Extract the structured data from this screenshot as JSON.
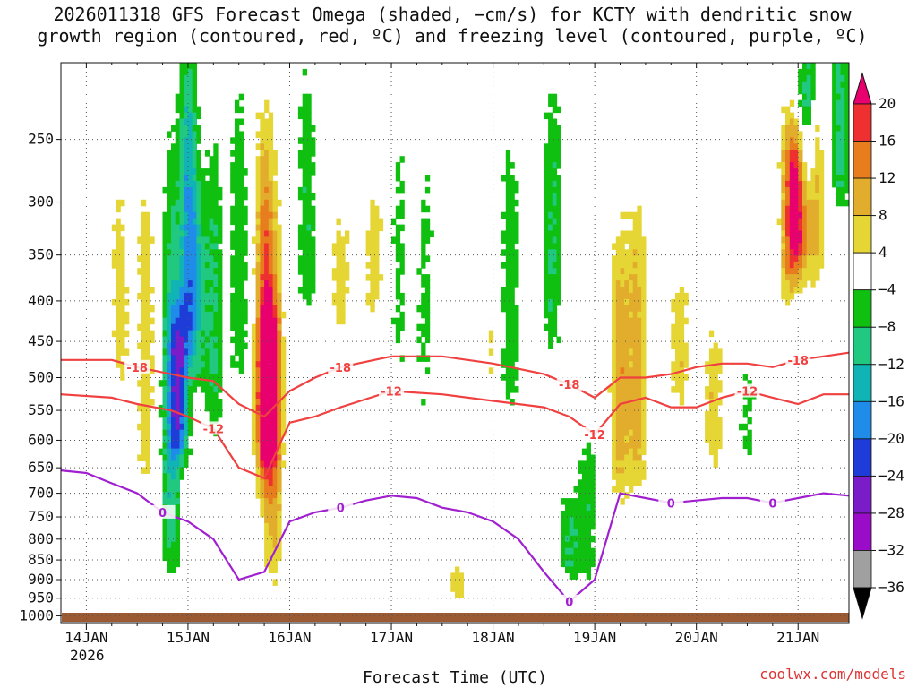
{
  "title_lines": [
    "2026011318 GFS Forecast Omega (shaded, −cm/s) for KCTY with dendritic snow",
    "growth region (contoured, red, ºC) and freezing level (contoured, purple, ºC)"
  ],
  "credit": "coolwx.com/models",
  "chart_data": {
    "type": "heatmap",
    "title": "2026011318 GFS Forecast Omega (shaded, −cm/s) for KCTY with dendritic snow growth region (contoured, red, ºC) and freezing level (contoured, purple, ºC)",
    "xlabel": "Forecast Time (UTC)",
    "ylabel": "",
    "x_ticks": [
      "14JAN",
      "15JAN",
      "16JAN",
      "17JAN",
      "18JAN",
      "19JAN",
      "20JAN",
      "21JAN"
    ],
    "x_year_label": "2026",
    "x_range_hours": [
      -6,
      180
    ],
    "y_ticks": [
      250,
      300,
      350,
      400,
      450,
      500,
      550,
      600,
      650,
      700,
      750,
      800,
      850,
      900,
      950,
      1000
    ],
    "ylim": [
      1020,
      200
    ],
    "y_scale": "log-pressure",
    "grid": true,
    "colorbar": {
      "labels": [
        "20",
        "16",
        "12",
        "8",
        "4",
        "−4",
        "−8",
        "−12",
        "−16",
        "−20",
        "−24",
        "−28",
        "−32",
        "−36"
      ],
      "colors": [
        "#e8006e",
        "#ef3030",
        "#e87d1e",
        "#e2ad2c",
        "#e6d635",
        "#ffffff",
        "#10c010",
        "#20c880",
        "#10b4b4",
        "#1e8ce8",
        "#1e3cd8",
        "#7a1cc8",
        "#9a0cc8",
        "#a0a0a0",
        "#000000"
      ]
    },
    "contours": {
      "dendritic_minus12": {
        "label": "-12",
        "color": "#f04040",
        "x": [
          -6,
          6,
          12,
          20,
          24,
          30,
          36,
          42,
          48,
          54,
          60,
          72,
          84,
          96,
          108,
          114,
          120,
          126,
          132,
          138,
          144,
          150,
          156,
          162,
          168,
          174,
          180
        ],
        "y": [
          525,
          530,
          540,
          550,
          560,
          580,
          650,
          670,
          570,
          560,
          545,
          520,
          525,
          535,
          545,
          560,
          590,
          540,
          530,
          545,
          545,
          530,
          520,
          530,
          540,
          525,
          525
        ]
      },
      "dendritic_minus18": {
        "label": "-18",
        "color": "#f04040",
        "x": [
          -6,
          6,
          12,
          20,
          24,
          30,
          36,
          42,
          48,
          54,
          60,
          72,
          84,
          96,
          108,
          114,
          120,
          126,
          132,
          138,
          144,
          150,
          156,
          162,
          168,
          174,
          180
        ],
        "y": [
          475,
          475,
          485,
          495,
          500,
          505,
          540,
          560,
          520,
          500,
          485,
          470,
          470,
          480,
          495,
          510,
          530,
          500,
          500,
          495,
          485,
          480,
          480,
          485,
          475,
          470,
          465
        ]
      },
      "freezing_level_0": {
        "label": "0",
        "color": "#a020d0",
        "x": [
          -6,
          0,
          6,
          12,
          18,
          24,
          30,
          36,
          42,
          48,
          54,
          60,
          66,
          72,
          78,
          84,
          90,
          96,
          102,
          108,
          114,
          120,
          126,
          132,
          138,
          144,
          150,
          156,
          162,
          168,
          174,
          180
        ],
        "y": [
          655,
          660,
          680,
          700,
          740,
          760,
          800,
          900,
          880,
          760,
          740,
          730,
          715,
          705,
          710,
          730,
          740,
          760,
          800,
          880,
          960,
          900,
          700,
          710,
          720,
          715,
          710,
          710,
          720,
          710,
          700,
          705
        ]
      }
    }
  }
}
